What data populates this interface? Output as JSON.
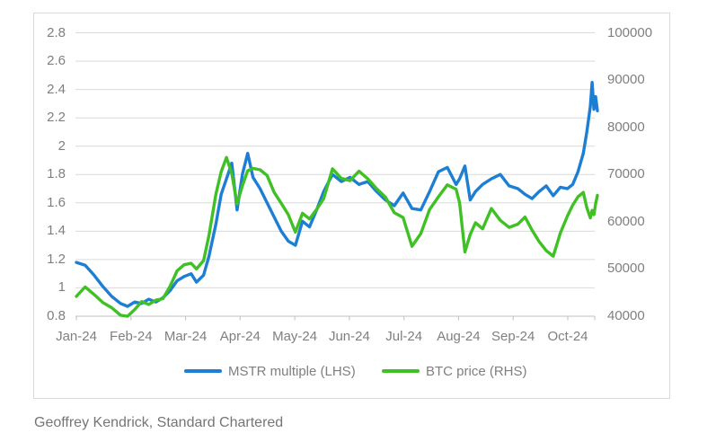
{
  "figure": {
    "caption": "Geoffrey Kendrick, Standard Chartered"
  },
  "colors": {
    "mstr_line": "#1d7fd4",
    "btc_line": "#3fc125",
    "gridline": "#d9d9d9",
    "axis_line": "#bfbfbf",
    "tick_text": "#7f7f7f",
    "caption_text": "#757575"
  },
  "chart_data": {
    "type": "line",
    "title": "",
    "grid": true,
    "legend_position": "bottom",
    "x_axis": {
      "labels": [
        "Jan-24",
        "Feb-24",
        "Mar-24",
        "Apr-24",
        "May-24",
        "Jun-24",
        "Jul-24",
        "Aug-24",
        "Sep-24",
        "Oct-24"
      ]
    },
    "y_left": {
      "label": "MSTR multiple",
      "min": 0.8,
      "max": 2.8,
      "step": 0.2,
      "ticks": [
        "2.8",
        "2.6",
        "2.4",
        "2.2",
        "2",
        "1.8",
        "1.6",
        "1.4",
        "1.2",
        "1",
        "0.8"
      ]
    },
    "y_right": {
      "label": "BTC price",
      "min": 40000,
      "max": 100000,
      "step": 10000,
      "ticks": [
        "100000",
        "90000",
        "80000",
        "70000",
        "60000",
        "50000",
        "40000"
      ]
    },
    "x_days": [
      0,
      5,
      10,
      15,
      20,
      25,
      29,
      33,
      37,
      41,
      45,
      49,
      53,
      57,
      61,
      65,
      68,
      72,
      75,
      79,
      82,
      85,
      88,
      91,
      94,
      97,
      100,
      104,
      108,
      112,
      116,
      120,
      124,
      128,
      132,
      136,
      140,
      145,
      150,
      155,
      160,
      165,
      170,
      175,
      180,
      185,
      190,
      195,
      200,
      205,
      210,
      215,
      217,
      220,
      223,
      226,
      230,
      235,
      240,
      245,
      250,
      254,
      258,
      262,
      266,
      270,
      274,
      278,
      281,
      284,
      287,
      289,
      291,
      292,
      293,
      294,
      295
    ],
    "series": [
      {
        "name": "MSTR multiple (LHS)",
        "axis": "left",
        "color": "#1d7fd4",
        "values": [
          1.18,
          1.16,
          1.09,
          1.01,
          0.94,
          0.89,
          0.87,
          0.9,
          0.89,
          0.92,
          0.9,
          0.93,
          0.98,
          1.05,
          1.08,
          1.1,
          1.04,
          1.09,
          1.22,
          1.45,
          1.66,
          1.77,
          1.88,
          1.55,
          1.8,
          1.95,
          1.78,
          1.7,
          1.6,
          1.5,
          1.4,
          1.33,
          1.3,
          1.47,
          1.43,
          1.55,
          1.68,
          1.8,
          1.75,
          1.78,
          1.73,
          1.75,
          1.68,
          1.62,
          1.58,
          1.67,
          1.56,
          1.55,
          1.68,
          1.82,
          1.85,
          1.73,
          1.77,
          1.86,
          1.62,
          1.68,
          1.73,
          1.77,
          1.8,
          1.72,
          1.7,
          1.66,
          1.63,
          1.68,
          1.72,
          1.65,
          1.71,
          1.7,
          1.73,
          1.82,
          1.95,
          2.1,
          2.28,
          2.45,
          2.26,
          2.35,
          2.25
        ]
      },
      {
        "name": "BTC price (RHS)",
        "axis": "right",
        "color": "#3fc125",
        "values": [
          44200,
          46200,
          44600,
          42900,
          41800,
          40200,
          40000,
          41400,
          43100,
          42500,
          43400,
          43700,
          46300,
          49600,
          50900,
          51200,
          50000,
          51800,
          57000,
          65800,
          70600,
          73600,
          70200,
          63800,
          67600,
          70800,
          71300,
          71000,
          69800,
          66200,
          63900,
          61500,
          57800,
          61800,
          60600,
          62600,
          64900,
          71200,
          69200,
          68700,
          70700,
          69100,
          67000,
          65200,
          61900,
          60900,
          54800,
          57500,
          62600,
          65300,
          67800,
          66900,
          64000,
          53600,
          57300,
          59800,
          58500,
          62800,
          60300,
          58800,
          59500,
          61000,
          58200,
          55800,
          53900,
          52700,
          57600,
          61200,
          63500,
          65300,
          66200,
          63000,
          60800,
          62400,
          61500,
          63800,
          65600
        ]
      }
    ]
  }
}
